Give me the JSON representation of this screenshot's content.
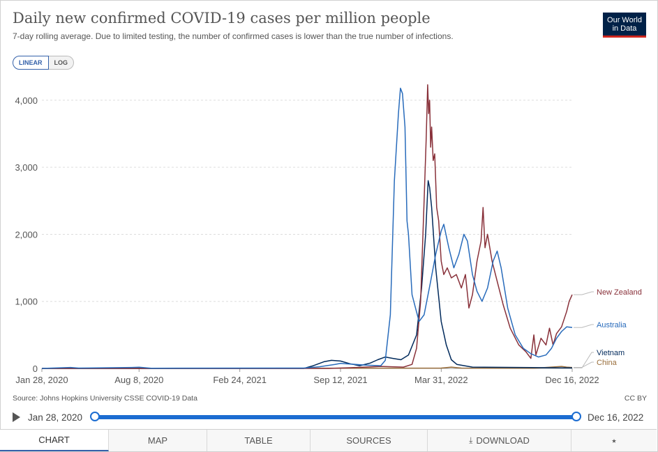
{
  "header": {
    "title": "Daily new confirmed COVID-19 cases per million people",
    "subtitle": "7-day rolling average. Due to limited testing, the number of confirmed cases is lower than the true number of infections.",
    "logo_line1": "Our World",
    "logo_line2": "in Data",
    "logo_color": "#002147",
    "logo_accent": "#ce261e"
  },
  "scale_toggle": {
    "linear_label": "LINEAR",
    "log_label": "LOG",
    "selected": "LINEAR"
  },
  "chart_data": {
    "type": "line",
    "title": "Daily new confirmed COVID-19 cases per million people",
    "xlabel": "",
    "ylabel": "",
    "x_range": [
      "2020-01-28",
      "2022-12-16"
    ],
    "ylim": [
      0,
      4300
    ],
    "yticks": [
      0,
      1000,
      2000,
      3000,
      4000
    ],
    "ytick_labels": [
      "0",
      "1,000",
      "2,000",
      "3,000",
      "4,000"
    ],
    "xticks": [
      "2020-01-28",
      "2020-08-08",
      "2021-02-24",
      "2021-09-12",
      "2022-03-31",
      "2022-12-16"
    ],
    "xtick_labels": [
      "Jan 28, 2020",
      "Aug 8, 2020",
      "Feb 24, 2021",
      "Sep 12, 2021",
      "Mar 31, 2022",
      "Dec 16, 2022"
    ],
    "grid": "horizontal dashed",
    "legend": "right, inline labels at line ends",
    "series": [
      {
        "name": "Vietnam",
        "color": "#00295b",
        "points": [
          [
            "2020-01-28",
            0
          ],
          [
            "2021-07-01",
            0
          ],
          [
            "2021-07-20",
            40
          ],
          [
            "2021-08-10",
            100
          ],
          [
            "2021-08-25",
            120
          ],
          [
            "2021-09-12",
            110
          ],
          [
            "2021-10-01",
            70
          ],
          [
            "2021-10-20",
            40
          ],
          [
            "2021-11-10",
            80
          ],
          [
            "2021-11-25",
            130
          ],
          [
            "2021-12-10",
            170
          ],
          [
            "2021-12-25",
            150
          ],
          [
            "2022-01-10",
            130
          ],
          [
            "2022-01-25",
            200
          ],
          [
            "2022-02-10",
            500
          ],
          [
            "2022-02-20",
            1200
          ],
          [
            "2022-02-28",
            2000
          ],
          [
            "2022-03-05",
            2800
          ],
          [
            "2022-03-08",
            2700
          ],
          [
            "2022-03-12",
            2400
          ],
          [
            "2022-03-20",
            1500
          ],
          [
            "2022-03-31",
            700
          ],
          [
            "2022-04-10",
            350
          ],
          [
            "2022-04-20",
            130
          ],
          [
            "2022-05-01",
            60
          ],
          [
            "2022-06-01",
            20
          ],
          [
            "2022-12-16",
            8
          ]
        ]
      },
      {
        "name": "Australia",
        "color": "#286bbb",
        "points": [
          [
            "2020-01-28",
            0
          ],
          [
            "2020-03-25",
            15
          ],
          [
            "2020-04-10",
            5
          ],
          [
            "2020-07-25",
            15
          ],
          [
            "2020-08-08",
            18
          ],
          [
            "2020-09-01",
            3
          ],
          [
            "2021-07-01",
            5
          ],
          [
            "2021-08-01",
            25
          ],
          [
            "2021-09-01",
            60
          ],
          [
            "2021-09-12",
            75
          ],
          [
            "2021-10-01",
            65
          ],
          [
            "2021-11-01",
            50
          ],
          [
            "2021-12-01",
            40
          ],
          [
            "2021-12-10",
            120
          ],
          [
            "2021-12-20",
            800
          ],
          [
            "2021-12-28",
            2800
          ],
          [
            "2022-01-05",
            3800
          ],
          [
            "2022-01-09",
            4180
          ],
          [
            "2022-01-13",
            4100
          ],
          [
            "2022-01-18",
            3600
          ],
          [
            "2022-01-22",
            2200
          ],
          [
            "2022-01-25",
            2000
          ],
          [
            "2022-02-01",
            1100
          ],
          [
            "2022-02-08",
            900
          ],
          [
            "2022-02-15",
            700
          ],
          [
            "2022-02-25",
            800
          ],
          [
            "2022-03-10",
            1300
          ],
          [
            "2022-03-20",
            1700
          ],
          [
            "2022-03-31",
            2050
          ],
          [
            "2022-04-05",
            2150
          ],
          [
            "2022-04-15",
            1800
          ],
          [
            "2022-04-25",
            1500
          ],
          [
            "2022-05-05",
            1700
          ],
          [
            "2022-05-15",
            2000
          ],
          [
            "2022-05-22",
            1900
          ],
          [
            "2022-06-01",
            1400
          ],
          [
            "2022-06-10",
            1150
          ],
          [
            "2022-06-20",
            1000
          ],
          [
            "2022-07-01",
            1200
          ],
          [
            "2022-07-12",
            1600
          ],
          [
            "2022-07-20",
            1750
          ],
          [
            "2022-07-28",
            1500
          ],
          [
            "2022-08-10",
            900
          ],
          [
            "2022-08-25",
            500
          ],
          [
            "2022-09-10",
            300
          ],
          [
            "2022-09-25",
            220
          ],
          [
            "2022-10-10",
            170
          ],
          [
            "2022-10-25",
            200
          ],
          [
            "2022-11-05",
            300
          ],
          [
            "2022-11-15",
            450
          ],
          [
            "2022-11-25",
            550
          ],
          [
            "2022-12-05",
            620
          ],
          [
            "2022-12-16",
            610
          ]
        ]
      },
      {
        "name": "New Zealand",
        "color": "#883039",
        "points": [
          [
            "2020-01-28",
            0
          ],
          [
            "2021-08-20",
            0
          ],
          [
            "2021-10-01",
            10
          ],
          [
            "2021-12-01",
            30
          ],
          [
            "2022-01-15",
            20
          ],
          [
            "2022-02-01",
            60
          ],
          [
            "2022-02-10",
            300
          ],
          [
            "2022-02-18",
            1000
          ],
          [
            "2022-02-25",
            2500
          ],
          [
            "2022-03-01",
            3400
          ],
          [
            "2022-03-04",
            4230
          ],
          [
            "2022-03-06",
            3800
          ],
          [
            "2022-03-08",
            4000
          ],
          [
            "2022-03-10",
            3300
          ],
          [
            "2022-03-12",
            3600
          ],
          [
            "2022-03-15",
            3100
          ],
          [
            "2022-03-18",
            3200
          ],
          [
            "2022-03-22",
            2400
          ],
          [
            "2022-03-26",
            2200
          ],
          [
            "2022-03-31",
            1600
          ],
          [
            "2022-04-05",
            1400
          ],
          [
            "2022-04-12",
            1500
          ],
          [
            "2022-04-20",
            1350
          ],
          [
            "2022-04-30",
            1400
          ],
          [
            "2022-05-10",
            1200
          ],
          [
            "2022-05-18",
            1400
          ],
          [
            "2022-05-25",
            900
          ],
          [
            "2022-06-01",
            1100
          ],
          [
            "2022-06-10",
            1600
          ],
          [
            "2022-06-18",
            1900
          ],
          [
            "2022-06-22",
            2400
          ],
          [
            "2022-06-26",
            1800
          ],
          [
            "2022-07-01",
            2000
          ],
          [
            "2022-07-10",
            1600
          ],
          [
            "2022-07-20",
            1300
          ],
          [
            "2022-08-01",
            950
          ],
          [
            "2022-08-15",
            600
          ],
          [
            "2022-09-01",
            350
          ],
          [
            "2022-09-15",
            250
          ],
          [
            "2022-09-25",
            150
          ],
          [
            "2022-10-01",
            500
          ],
          [
            "2022-10-05",
            200
          ],
          [
            "2022-10-15",
            450
          ],
          [
            "2022-10-25",
            350
          ],
          [
            "2022-11-01",
            600
          ],
          [
            "2022-11-08",
            350
          ],
          [
            "2022-11-15",
            520
          ],
          [
            "2022-11-25",
            620
          ],
          [
            "2022-12-05",
            850
          ],
          [
            "2022-12-10",
            1000
          ],
          [
            "2022-12-16",
            1100
          ]
        ]
      },
      {
        "name": "China",
        "color": "#996d39",
        "points": [
          [
            "2020-01-28",
            0
          ],
          [
            "2020-02-15",
            1
          ],
          [
            "2020-03-01",
            0
          ],
          [
            "2022-03-31",
            5
          ],
          [
            "2022-04-20",
            20
          ],
          [
            "2022-05-10",
            5
          ],
          [
            "2022-10-01",
            3
          ],
          [
            "2022-11-25",
            30
          ],
          [
            "2022-12-05",
            20
          ],
          [
            "2022-12-16",
            15
          ]
        ]
      }
    ]
  },
  "footer": {
    "source": "Source: Johns Hopkins University CSSE COVID-19 Data",
    "license": "CC BY"
  },
  "timeline": {
    "start_label": "Jan 28, 2020",
    "end_label": "Dec 16, 2022",
    "range_start": 0,
    "range_end": 1
  },
  "tabs": [
    {
      "label": "CHART",
      "active": true
    },
    {
      "label": "MAP",
      "active": false
    },
    {
      "label": "TABLE",
      "active": false
    },
    {
      "label": "SOURCES",
      "active": false
    },
    {
      "label": "DOWNLOAD",
      "active": false,
      "icon": "download-icon"
    },
    {
      "label": "",
      "active": false,
      "icon": "share-icon"
    }
  ]
}
